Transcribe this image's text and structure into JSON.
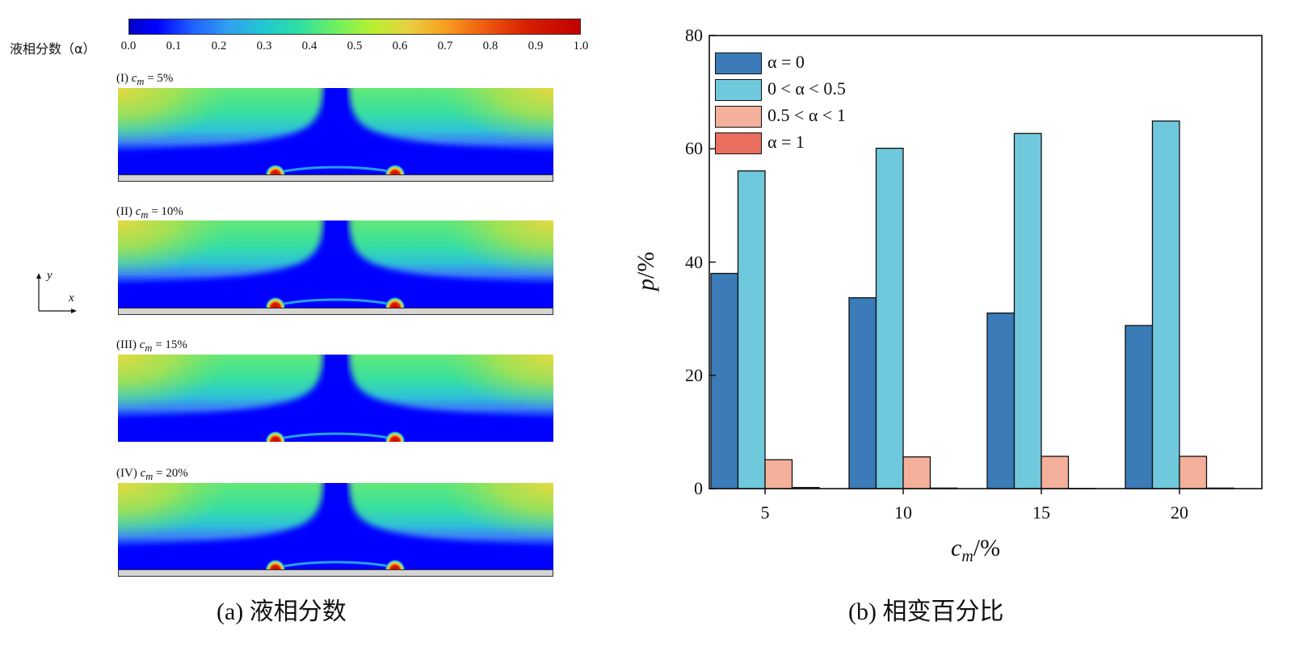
{
  "panel_a": {
    "colorbar_label": "液相分数（α）",
    "colorbar_ticks": [
      "0.0",
      "0.1",
      "0.2",
      "0.3",
      "0.4",
      "0.5",
      "0.6",
      "0.7",
      "0.8",
      "0.9",
      "1.0"
    ],
    "panels": [
      {
        "prefix": "(I) ",
        "var": "c",
        "sub": "m",
        "suffix": " = 5%"
      },
      {
        "prefix": "(II) ",
        "var": "c",
        "sub": "m",
        "suffix": " = 10%"
      },
      {
        "prefix": "(III) ",
        "var": "c",
        "sub": "m",
        "suffix": " = 15%"
      },
      {
        "prefix": "(IV) ",
        "var": "c",
        "sub": "m",
        "suffix": " = 20%"
      }
    ],
    "axes_y": "y",
    "axes_x": "x",
    "caption": "(a) 液相分数"
  },
  "chart_data": {
    "type": "bar",
    "categories": [
      "5",
      "10",
      "15",
      "20"
    ],
    "series": [
      {
        "name": "α = 0",
        "color": "#3a7bb8",
        "values": [
          38.0,
          33.7,
          31.0,
          28.8
        ]
      },
      {
        "name": "0 < α < 0.5",
        "color": "#70c8dc",
        "values": [
          56.1,
          60.1,
          62.7,
          64.9
        ]
      },
      {
        "name": "0.5 < α < 1",
        "color": "#f4b09a",
        "values": [
          5.1,
          5.6,
          5.7,
          5.7
        ]
      },
      {
        "name": "α = 1",
        "color": "#ea6f5e",
        "values": [
          0.2,
          0.1,
          0.05,
          0.1
        ]
      }
    ],
    "xlabel_var": "c",
    "xlabel_sub": "m",
    "xlabel_unit": "/%",
    "ylabel_var": "p",
    "ylabel_unit": "/%",
    "ylim": [
      0,
      80
    ],
    "yticks": [
      "0",
      "20",
      "40",
      "60",
      "80"
    ],
    "legend": "top-left",
    "caption": "(b) 相变百分比"
  }
}
